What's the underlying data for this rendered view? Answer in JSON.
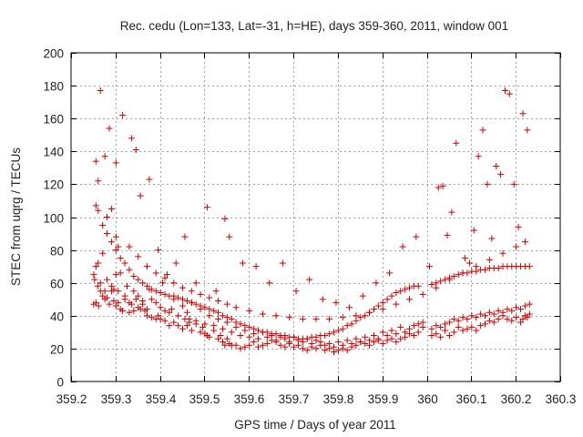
{
  "chart_data": {
    "type": "scatter",
    "title": "Rec. cedu (Lon=133, Lat=-31, h=HE), days 359-360, 2011, window 001",
    "xlabel": "GPS time / Days of year 2011",
    "ylabel": "STEC from uqrg / TECUs",
    "xlim": [
      359.2,
      360.3
    ],
    "ylim": [
      0,
      200
    ],
    "xticks": [
      "359.2",
      "359.3",
      "359.4",
      "359.5",
      "359.6",
      "359.7",
      "359.8",
      "359.9",
      "360",
      "360.1",
      "360.2",
      "360.3"
    ],
    "yticks": [
      "0",
      "20",
      "40",
      "60",
      "80",
      "100",
      "120",
      "140",
      "160",
      "180",
      "200"
    ],
    "grid": true,
    "marker": "plus",
    "color": "#cc0000",
    "series": [
      {
        "x": [
          359.251,
          359.253,
          359.256,
          359.26,
          359.262,
          359.266,
          359.271,
          359.276,
          359.281,
          359.286,
          359.291,
          359.296,
          359.301,
          359.306,
          359.311,
          359.316,
          359.321,
          359.331,
          359.336,
          359.341,
          359.351,
          359.356,
          359.361,
          359.366,
          359.371,
          359.381,
          359.391,
          359.396,
          359.401,
          359.411,
          359.421,
          359.431,
          359.441,
          359.451,
          359.456,
          359.461,
          359.466,
          359.471,
          359.481,
          359.491,
          359.496,
          359.501,
          359.506,
          359.511,
          359.521,
          359.531,
          359.536,
          359.541,
          359.546,
          359.551,
          359.556,
          359.561,
          359.571,
          359.581,
          359.591,
          359.601,
          359.611,
          359.621,
          359.631,
          359.641,
          359.651,
          359.661,
          359.671,
          359.681,
          359.691,
          359.701,
          359.711,
          359.721,
          359.731,
          359.741,
          359.751,
          359.761,
          359.771,
          359.781,
          359.791,
          359.801,
          359.811,
          359.821,
          359.831,
          359.841,
          359.851,
          359.861,
          359.871,
          359.881,
          359.891,
          359.901,
          359.911,
          359.921,
          359.931,
          359.941,
          359.951,
          359.961,
          359.971,
          359.981,
          359.991,
          360.011,
          360.021,
          360.031,
          360.041,
          360.051,
          360.061,
          360.071,
          360.081,
          360.091,
          360.101,
          360.111,
          360.121,
          360.131,
          360.141,
          360.151,
          360.161,
          360.171,
          360.181,
          360.191,
          360.201,
          360.211,
          360.216,
          360.221,
          360.226,
          360.231
        ],
        "y": [
          47,
          62,
          48,
          58,
          46,
          55,
          52,
          50,
          51,
          47,
          55,
          49,
          46,
          48,
          44,
          43,
          50,
          42,
          47,
          43,
          45,
          44,
          49,
          43,
          40,
          39,
          38,
          40,
          38,
          37,
          34,
          36,
          34,
          32,
          38,
          34,
          36,
          31,
          35,
          30,
          33,
          29,
          28,
          27,
          31,
          26,
          28,
          24,
          22,
          26,
          23,
          22,
          22,
          20,
          21,
          22,
          24,
          21,
          22,
          23,
          25,
          24,
          22,
          21,
          23,
          21,
          22,
          20,
          19,
          21,
          20,
          22,
          19,
          20,
          18,
          19,
          20,
          19,
          21,
          22,
          24,
          23,
          22,
          24,
          25,
          23,
          25,
          26,
          24,
          26,
          27,
          29,
          28,
          30,
          33,
          28,
          29,
          27,
          31,
          28,
          30,
          33,
          31,
          32,
          33,
          31,
          34,
          35,
          37,
          36,
          38,
          40,
          38,
          37,
          39,
          36,
          38,
          40,
          39,
          41
        ]
      },
      {
        "x": [
          359.251,
          359.256,
          359.261,
          359.266,
          359.271,
          359.276,
          359.281,
          359.291,
          359.296,
          359.301,
          359.306,
          359.311,
          359.321,
          359.326,
          359.331,
          359.341,
          359.346,
          359.351,
          359.361,
          359.371,
          359.376,
          359.381,
          359.391,
          359.401,
          359.406,
          359.411,
          359.421,
          359.426,
          359.431,
          359.441,
          359.451,
          359.461,
          359.466,
          359.471,
          359.481,
          359.491,
          359.501,
          359.511,
          359.521,
          359.531,
          359.541,
          359.551,
          359.561,
          359.571,
          359.581,
          359.591,
          359.601,
          359.611,
          359.621,
          359.631,
          359.641,
          359.651,
          359.661,
          359.671,
          359.681,
          359.691,
          359.701,
          359.711,
          359.721,
          359.731,
          359.741,
          359.751,
          359.761,
          359.771,
          359.781,
          359.791,
          359.801,
          359.811,
          359.821,
          359.831,
          359.841,
          359.851,
          359.861,
          359.871,
          359.881,
          359.891,
          359.901,
          359.911,
          359.921,
          359.931,
          359.941,
          359.951,
          359.961,
          359.971,
          359.981,
          359.991,
          360.011,
          360.021,
          360.031,
          360.041,
          360.051,
          360.061,
          360.071,
          360.081,
          360.091,
          360.101,
          360.111,
          360.121,
          360.131,
          360.141,
          360.151,
          360.161,
          360.171,
          360.181,
          360.191,
          360.201,
          360.211,
          360.221,
          360.231
        ],
        "y": [
          65,
          70,
          72,
          60,
          78,
          55,
          62,
          58,
          56,
          65,
          55,
          66,
          52,
          58,
          48,
          55,
          50,
          52,
          47,
          44,
          56,
          50,
          48,
          45,
          60,
          43,
          42,
          44,
          50,
          40,
          46,
          42,
          38,
          48,
          37,
          44,
          35,
          40,
          34,
          38,
          32,
          36,
          30,
          33,
          28,
          31,
          27,
          29,
          26,
          30,
          27,
          28,
          25,
          27,
          26,
          24,
          27,
          25,
          24,
          26,
          23,
          25,
          24,
          22,
          23,
          21,
          24,
          22,
          25,
          23,
          26,
          24,
          27,
          25,
          28,
          26,
          30,
          28,
          31,
          29,
          33,
          30,
          32,
          34,
          35,
          36,
          32,
          34,
          33,
          35,
          36,
          38,
          37,
          39,
          38,
          40,
          39,
          41,
          40,
          42,
          41,
          43,
          42,
          44,
          43,
          45,
          44,
          46,
          47
        ]
      },
      {
        "x": [
          359.256,
          359.261,
          359.271,
          359.281,
          359.291,
          359.301,
          359.311,
          359.321,
          359.331,
          359.341,
          359.351,
          359.361,
          359.371,
          359.381,
          359.391,
          359.401,
          359.411,
          359.421,
          359.431,
          359.441,
          359.451,
          359.461,
          359.471,
          359.481,
          359.491,
          359.501,
          359.511,
          359.521,
          359.531,
          359.541,
          359.551,
          359.561,
          359.571,
          359.581,
          359.591,
          359.601,
          359.611,
          359.621,
          359.631,
          359.641,
          359.651,
          359.661,
          359.671,
          359.681,
          359.691,
          359.701,
          359.711,
          359.721,
          359.731,
          359.741,
          359.751,
          359.761,
          359.771,
          359.781,
          359.791,
          359.801,
          359.811,
          359.821,
          359.831,
          359.841,
          359.851,
          359.861,
          359.871,
          359.881,
          359.891,
          359.901,
          359.911,
          359.921,
          359.931,
          359.941,
          359.951,
          359.961,
          359.971,
          359.981,
          360.011,
          360.021,
          360.031,
          360.041,
          360.051,
          360.061,
          360.071,
          360.081,
          360.091,
          360.101,
          360.111,
          360.121,
          360.131,
          360.141,
          360.151,
          360.161,
          360.171,
          360.181,
          360.191,
          360.201,
          360.211,
          360.221,
          360.231
        ],
        "y": [
          107,
          104,
          95,
          90,
          85,
          80,
          75,
          72,
          68,
          64,
          62,
          60,
          58,
          56,
          55,
          54,
          53,
          52,
          52,
          51,
          50,
          49,
          48,
          47,
          46,
          45,
          44,
          43,
          42,
          40,
          39,
          38,
          36,
          35,
          34,
          33,
          32,
          31,
          30,
          30,
          29,
          29,
          28,
          28,
          27,
          27,
          26,
          26,
          26,
          27,
          27,
          28,
          28,
          29,
          30,
          31,
          32,
          34,
          35,
          37,
          39,
          40,
          42,
          44,
          46,
          48,
          50,
          52,
          54,
          55,
          56,
          57,
          58,
          58,
          59,
          60,
          61,
          62,
          63,
          64,
          65,
          66,
          66,
          67,
          67,
          68,
          68,
          69,
          69,
          69,
          70,
          70,
          70,
          70,
          70,
          70,
          70
        ]
      },
      {
        "x": [
          359.261,
          359.281,
          359.301,
          359.331,
          359.351,
          359.371,
          359.391,
          359.411,
          359.431,
          359.451,
          359.471,
          359.491,
          359.511,
          359.531,
          359.551,
          359.571,
          359.601,
          359.631,
          359.661,
          359.691,
          359.721,
          359.751,
          359.781,
          359.811,
          359.841,
          359.871,
          359.901,
          359.931,
          359.961,
          359.991,
          360.021,
          360.051,
          360.081,
          360.111,
          360.141,
          360.171,
          360.201,
          360.221
        ],
        "y": [
          122,
          100,
          88,
          82,
          76,
          70,
          66,
          63,
          60,
          57,
          55,
          53,
          51,
          49,
          47,
          45,
          43,
          41,
          40,
          39,
          38,
          38,
          38,
          39,
          40,
          42,
          44,
          47,
          50,
          53,
          57,
          62,
          66,
          70,
          74,
          78,
          82,
          85
        ]
      },
      {
        "x": [
          359.256,
          359.266,
          359.276,
          359.286,
          359.291,
          359.301,
          359.306,
          359.316,
          359.336,
          359.346,
          359.356,
          359.376,
          359.396,
          359.416,
          359.436,
          359.456,
          359.481,
          359.506,
          359.526,
          359.546,
          359.556,
          359.586,
          359.616,
          359.646,
          359.676,
          359.706,
          359.736,
          359.766,
          359.796,
          359.826,
          359.856,
          359.886,
          359.916,
          359.946,
          359.976,
          360.006,
          360.026,
          360.036,
          360.046,
          360.056,
          360.066,
          360.086,
          360.096,
          360.106,
          360.116,
          360.126,
          360.136,
          360.146,
          360.156,
          360.166,
          360.176,
          360.186,
          360.196,
          360.206,
          360.216,
          360.226
        ],
        "y": [
          134,
          177,
          137,
          154,
          105,
          133,
          82,
          162,
          148,
          141,
          113,
          123,
          80,
          65,
          72,
          88,
          60,
          106,
          55,
          99,
          88,
          72,
          70,
          60,
          72,
          55,
          62,
          50,
          48,
          45,
          52,
          60,
          66,
          82,
          88,
          70,
          118,
          119,
          89,
          103,
          145,
          75,
          72,
          92,
          137,
          153,
          120,
          87,
          131,
          126,
          177,
          175,
          120,
          94,
          163,
          153
        ]
      }
    ]
  }
}
